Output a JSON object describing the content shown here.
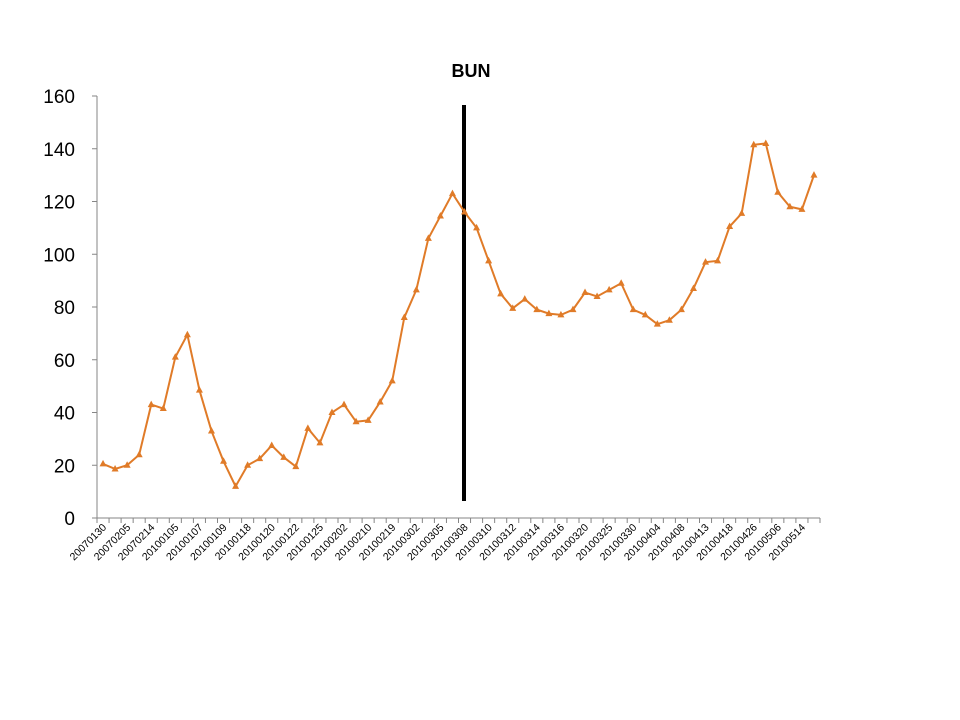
{
  "chart_data": {
    "type": "line",
    "title": "BUN",
    "categories": [
      "20070130",
      null,
      "20070205",
      null,
      "20070214",
      null,
      "20100105",
      null,
      "20100107",
      null,
      "20100109",
      null,
      "20100118",
      null,
      "20100120",
      null,
      "20100122",
      null,
      "20100125",
      null,
      "20100202",
      null,
      "20100210",
      null,
      "20100219",
      null,
      "20100302",
      null,
      "20100305",
      null,
      "20100308",
      null,
      "20100310",
      null,
      "20100312",
      null,
      "20100314",
      null,
      "20100316",
      null,
      "20100320",
      null,
      "20100325",
      null,
      "20100330",
      null,
      "20100404",
      null,
      "20100408",
      null,
      "20100413",
      null,
      "20100418",
      null,
      "20100426",
      null,
      "20100506",
      null,
      "20100514",
      null
    ],
    "series": [
      {
        "name": "BUN",
        "color": "#e07b28",
        "values": [
          20.5,
          18.6,
          20,
          24,
          43,
          41.5,
          61,
          69.5,
          48.5,
          33,
          21.5,
          12,
          20,
          22.5,
          27.5,
          23,
          19.5,
          34,
          28.5,
          40,
          43,
          36.5,
          37,
          44,
          52,
          76,
          86.5,
          106,
          114.5,
          123,
          116,
          110,
          97.5,
          85,
          79.5,
          83,
          79,
          77.5,
          77,
          79,
          85.5,
          84,
          86.5,
          89,
          79,
          77,
          73.5,
          75,
          79,
          87,
          97,
          97.5,
          110.5,
          115.5,
          141.5,
          142,
          123.5,
          118,
          117,
          130
        ]
      }
    ],
    "ylim": [
      0,
      160
    ],
    "yticks": [
      0,
      20,
      40,
      60,
      80,
      100,
      120,
      140,
      160
    ],
    "grid": false,
    "legend": false
  }
}
